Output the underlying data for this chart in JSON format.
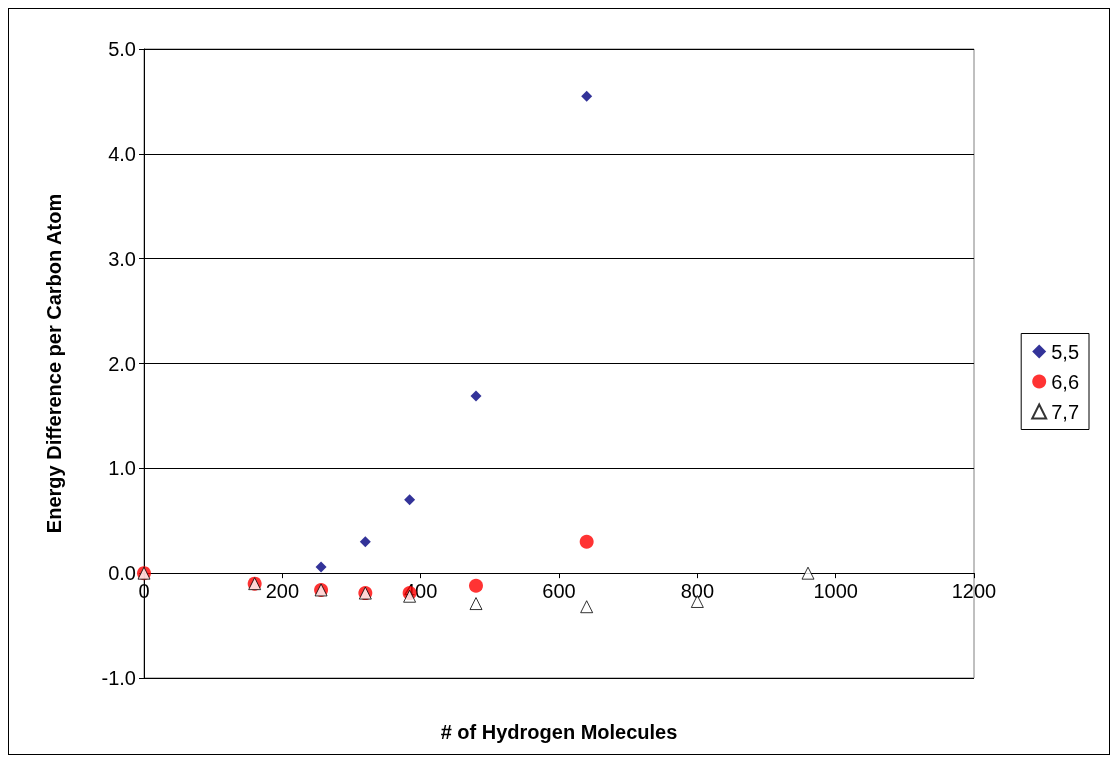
{
  "chart_data": {
    "type": "scatter",
    "xlabel": "# of Hydrogen Molecules",
    "ylabel": "Energy Difference per Carbon Atom",
    "xlim": [
      0,
      1200
    ],
    "xticks": [
      0,
      200,
      400,
      600,
      800,
      1000,
      1200
    ],
    "ylim": [
      -1,
      5
    ],
    "yticks": [
      {
        "value": -1,
        "label": "-1.0"
      },
      {
        "value": 0,
        "label": "0.0"
      },
      {
        "value": 1,
        "label": "1.0"
      },
      {
        "value": 2,
        "label": "2.0"
      },
      {
        "value": 3,
        "label": "3.0"
      },
      {
        "value": 4,
        "label": "4.0"
      },
      {
        "value": 5,
        "label": "5.0"
      }
    ],
    "grid": "y",
    "legend": "right",
    "series": [
      {
        "name": "5,5",
        "color": "#000080",
        "marker": "diamond",
        "x": [
          256,
          320,
          384,
          480,
          640
        ],
        "values": [
          0.06,
          0.3,
          0.7,
          1.69,
          4.55
        ]
      },
      {
        "name": "6,6",
        "color": "#ff0000",
        "marker": "circle",
        "x": [
          0,
          160,
          256,
          320,
          384,
          480,
          640
        ],
        "values": [
          0,
          -0.1,
          -0.16,
          -0.19,
          -0.19,
          -0.12,
          0.3
        ]
      },
      {
        "name": "7,7",
        "color": "#ffffff",
        "marker": "triangle",
        "x": [
          0,
          160,
          256,
          320,
          384,
          480,
          640,
          800,
          960
        ],
        "values": [
          0,
          -0.1,
          -0.16,
          -0.19,
          -0.22,
          -0.29,
          -0.32,
          -0.27,
          0
        ]
      }
    ]
  }
}
